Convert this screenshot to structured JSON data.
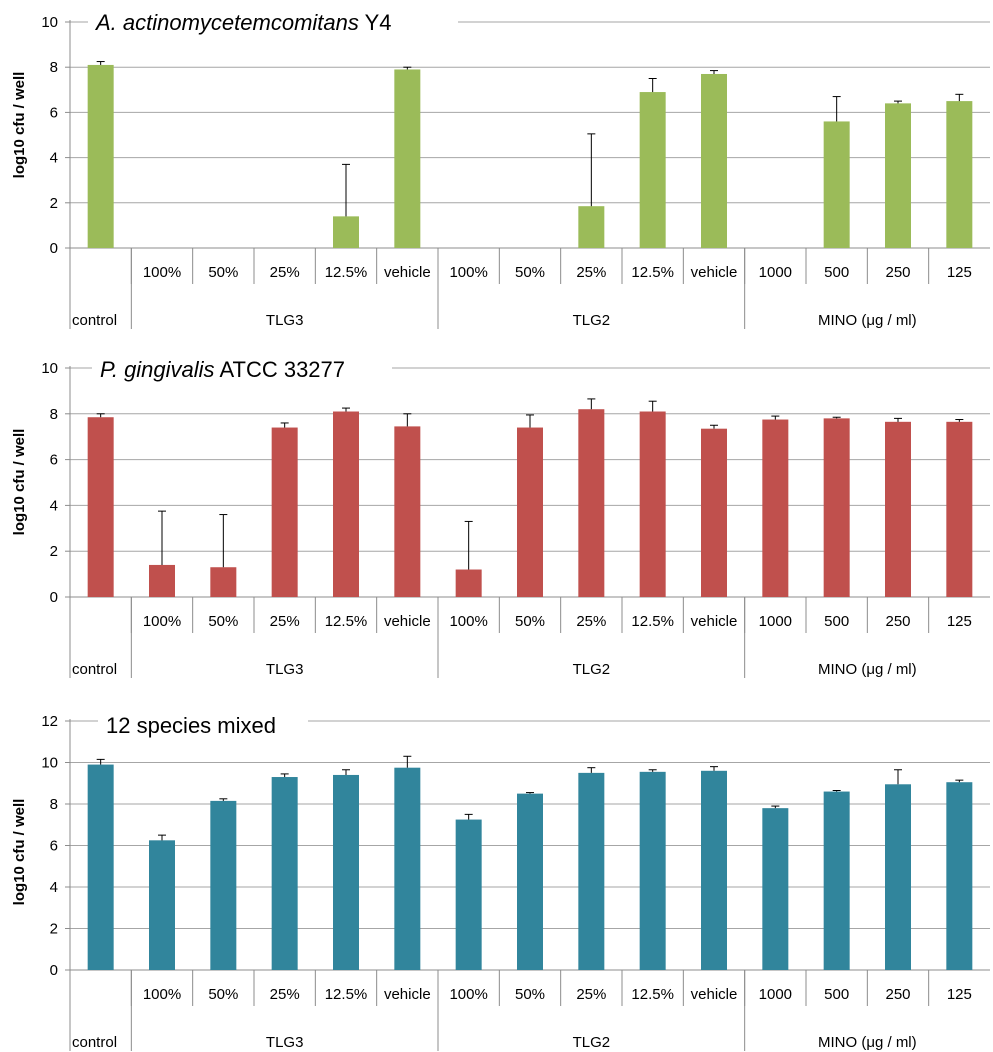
{
  "chart_data": [
    {
      "type": "bar",
      "title": "A. actinomycetemcomitans Y4",
      "title_italic": "A. actinomycetemcomitans",
      "title_rest": " Y4",
      "ylabel": "log10 cfu / well",
      "ylim": [
        0,
        10
      ],
      "yticks": [
        "0",
        "2",
        "4",
        "6",
        "8",
        "10"
      ],
      "color": "#9bbb59",
      "gridlines": true,
      "categories": [
        "control",
        "100%",
        "50%",
        "25%",
        "12.5%",
        "vehicle",
        "100%",
        "50%",
        "25%",
        "12.5%",
        "vehicle",
        "1000",
        "500",
        "250",
        "125"
      ],
      "groups": [
        {
          "label": "control",
          "start": 0,
          "count": 1
        },
        {
          "label": "TLG3",
          "start": 1,
          "count": 5
        },
        {
          "label": "TLG2",
          "start": 6,
          "count": 5
        },
        {
          "label": "MINO (μg / ml)",
          "start": 11,
          "count": 4
        }
      ],
      "values": [
        8.1,
        0,
        0,
        0,
        1.4,
        7.9,
        0,
        0,
        1.85,
        6.9,
        7.7,
        0,
        5.6,
        6.4,
        6.5
      ],
      "errors": [
        0.15,
        0,
        0,
        0,
        2.3,
        0.1,
        0,
        0,
        3.2,
        0.6,
        0.15,
        0,
        1.1,
        0.1,
        0.3
      ]
    },
    {
      "type": "bar",
      "title": "P. gingivalis ATCC 33277",
      "title_italic": "P. gingivalis",
      "title_rest": " ATCC 33277",
      "ylabel": "log10 cfu / well",
      "ylim": [
        0,
        10
      ],
      "yticks": [
        "0",
        "2",
        "4",
        "6",
        "8",
        "10"
      ],
      "color": "#c0504d",
      "gridlines": true,
      "categories": [
        "control",
        "100%",
        "50%",
        "25%",
        "12.5%",
        "vehicle",
        "100%",
        "50%",
        "25%",
        "12.5%",
        "vehicle",
        "1000",
        "500",
        "250",
        "125"
      ],
      "groups": [
        {
          "label": "control",
          "start": 0,
          "count": 1
        },
        {
          "label": "TLG3",
          "start": 1,
          "count": 5
        },
        {
          "label": "TLG2",
          "start": 6,
          "count": 5
        },
        {
          "label": "MINO (μg / ml)",
          "start": 11,
          "count": 4
        }
      ],
      "values": [
        7.85,
        1.4,
        1.3,
        7.4,
        8.1,
        7.45,
        1.2,
        7.4,
        8.2,
        8.1,
        7.35,
        7.75,
        7.8,
        7.65,
        7.65
      ],
      "errors": [
        0.15,
        2.35,
        2.3,
        0.2,
        0.15,
        0.55,
        2.1,
        0.55,
        0.45,
        0.45,
        0.15,
        0.15,
        0.05,
        0.15,
        0.1
      ]
    },
    {
      "type": "bar",
      "title": "12 species mixed",
      "title_italic": "",
      "title_rest": "12 species mixed",
      "ylabel": "log10 cfu / well",
      "ylim": [
        0,
        12
      ],
      "yticks": [
        "0",
        "2",
        "4",
        "6",
        "8",
        "10",
        "12"
      ],
      "color": "#31859c",
      "gridlines": true,
      "categories": [
        "control",
        "100%",
        "50%",
        "25%",
        "12.5%",
        "vehicle",
        "100%",
        "50%",
        "25%",
        "12.5%",
        "vehicle",
        "1000",
        "500",
        "250",
        "125"
      ],
      "groups": [
        {
          "label": "control",
          "start": 0,
          "count": 1
        },
        {
          "label": "TLG3",
          "start": 1,
          "count": 5
        },
        {
          "label": "TLG2",
          "start": 6,
          "count": 5
        },
        {
          "label": "MINO (μg / ml)",
          "start": 11,
          "count": 4
        }
      ],
      "values": [
        9.9,
        6.25,
        8.15,
        9.3,
        9.4,
        9.75,
        7.25,
        8.5,
        9.5,
        9.55,
        9.6,
        7.8,
        8.6,
        8.95,
        9.05
      ],
      "errors": [
        0.25,
        0.25,
        0.1,
        0.15,
        0.25,
        0.55,
        0.25,
        0.05,
        0.25,
        0.1,
        0.2,
        0.1,
        0.05,
        0.7,
        0.1
      ]
    }
  ]
}
